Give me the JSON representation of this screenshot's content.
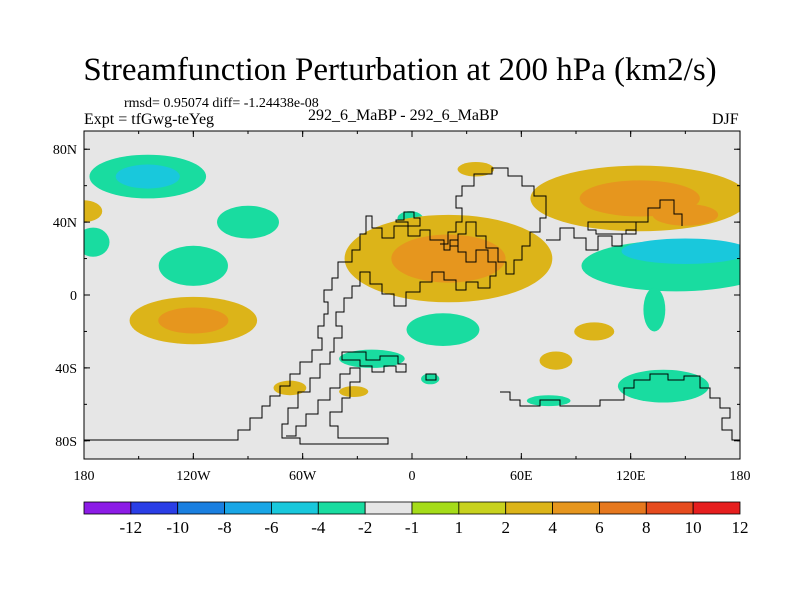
{
  "chart_data": {
    "type": "heatmap",
    "title": "Streamfunction Perturbation at 200 hPa (km2/s)",
    "stats_label": "rmsd= 0.95074 diff= -1.24438e-08",
    "experiment_label": "Expt = tfGwg-teYeg",
    "center_label": "292_6_MaBP - 292_6_MaBP",
    "season_label": "DJF",
    "x_ticks": [
      "180",
      "120W",
      "60W",
      "0",
      "60E",
      "120E",
      "180"
    ],
    "x_tick_values": [
      -180,
      -120,
      -60,
      0,
      60,
      120,
      180
    ],
    "y_ticks": [
      "80N",
      "40N",
      "0",
      "40S",
      "80S"
    ],
    "y_tick_values": [
      80,
      40,
      0,
      -40,
      -80
    ],
    "xlim": [
      -180,
      180
    ],
    "ylim": [
      -90,
      90
    ],
    "background_color": "#e6e6e6",
    "colorbar": {
      "labels": [
        "-12",
        "-10",
        "-8",
        "-6",
        "-4",
        "-2",
        "-1",
        "1",
        "2",
        "4",
        "6",
        "8",
        "10",
        "12"
      ],
      "colors": [
        "#8c1ce6",
        "#2a3ee6",
        "#1a7fe0",
        "#19a6e6",
        "#19c8dc",
        "#19dca0",
        "#e6e6e6",
        "#a5dc19",
        "#c8d21e",
        "#dcb419",
        "#e6961e",
        "#e6781e",
        "#e64b1e",
        "#e61e1e"
      ]
    },
    "anomalies": [
      {
        "lon": -145,
        "lat": 65,
        "rx": 32,
        "ry": 12,
        "value": -2,
        "core": -4
      },
      {
        "lon": -180,
        "lat": 46,
        "rx": 10,
        "ry": 6,
        "value": 2
      },
      {
        "lon": -175,
        "lat": 29,
        "rx": 9,
        "ry": 8,
        "value": -2
      },
      {
        "lon": -90,
        "lat": 40,
        "rx": 17,
        "ry": 9,
        "value": -2
      },
      {
        "lon": -120,
        "lat": 16,
        "rx": 19,
        "ry": 11,
        "value": -2
      },
      {
        "lon": -120,
        "lat": -14,
        "rx": 35,
        "ry": 13,
        "value": 2,
        "core": 4
      },
      {
        "lon": -1,
        "lat": 42,
        "rx": 7,
        "ry": 4,
        "value": -2
      },
      {
        "lon": 35,
        "lat": 69,
        "rx": 10,
        "ry": 4,
        "value": 2
      },
      {
        "lon": 20,
        "lat": 20,
        "rx": 57,
        "ry": 24,
        "value": 2,
        "core": 4
      },
      {
        "lon": 17,
        "lat": -19,
        "rx": 20,
        "ry": 9,
        "value": -2
      },
      {
        "lon": -22,
        "lat": -35,
        "rx": 18,
        "ry": 5,
        "value": -2
      },
      {
        "lon": 10,
        "lat": -46,
        "rx": 5,
        "ry": 3,
        "value": -2
      },
      {
        "lon": -32,
        "lat": -53,
        "rx": 8,
        "ry": 3,
        "value": 2
      },
      {
        "lon": -67,
        "lat": -51,
        "rx": 9,
        "ry": 4,
        "value": 2
      },
      {
        "lon": 79,
        "lat": -36,
        "rx": 9,
        "ry": 5,
        "value": 2
      },
      {
        "lon": 100,
        "lat": -20,
        "rx": 11,
        "ry": 5,
        "value": 2
      },
      {
        "lon": 75,
        "lat": -58,
        "rx": 12,
        "ry": 3,
        "value": -2
      },
      {
        "lon": 138,
        "lat": -50,
        "rx": 25,
        "ry": 9,
        "value": -2
      },
      {
        "lon": 125,
        "lat": 53,
        "rx": 60,
        "ry": 18,
        "value": 2,
        "core": 4
      },
      {
        "lon": 150,
        "lat": 44,
        "rx": 18,
        "ry": 6,
        "value": 4
      },
      {
        "lon": 145,
        "lat": 16,
        "rx": 52,
        "ry": 14,
        "value": -2
      },
      {
        "lon": 150,
        "lat": 24,
        "rx": 35,
        "ry": 7,
        "value": -4
      },
      {
        "lon": 133,
        "lat": -8,
        "rx": 6,
        "ry": 12,
        "value": -2
      }
    ]
  }
}
